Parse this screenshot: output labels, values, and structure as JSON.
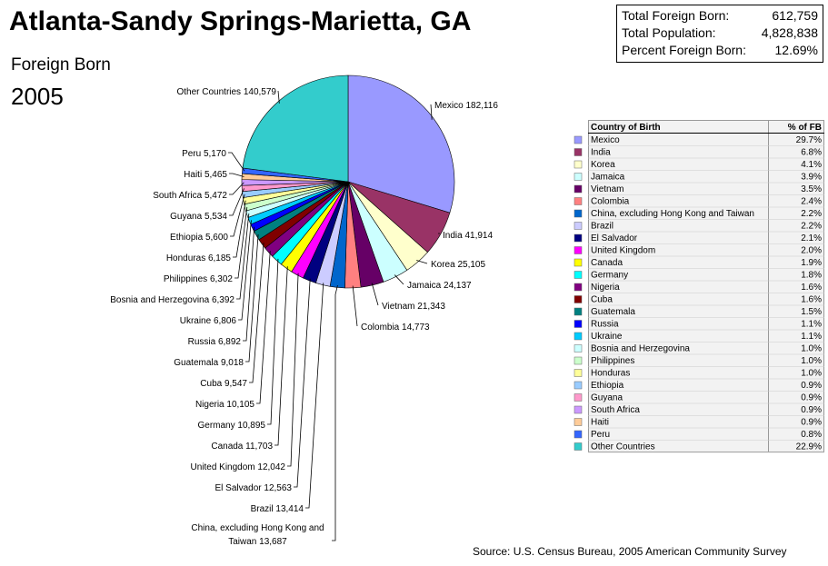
{
  "chart_data": {
    "type": "pie",
    "title": "Atlanta-Sandy Springs-Marietta, GA",
    "subtitle": "Foreign Born",
    "year": "2005",
    "categories": [
      "Mexico",
      "India",
      "Korea",
      "Jamaica",
      "Vietnam",
      "Colombia",
      "China, excluding Hong Kong and Taiwan",
      "Brazil",
      "El Salvador",
      "United Kingdom",
      "Canada",
      "Germany",
      "Nigeria",
      "Cuba",
      "Guatemala",
      "Russia",
      "Ukraine",
      "Bosnia and Herzegovina",
      "Philippines",
      "Honduras",
      "Ethiopia",
      "Guyana",
      "South Africa",
      "Haiti",
      "Peru",
      "Other Countries"
    ],
    "values": [
      182116,
      41914,
      25105,
      24137,
      21343,
      14773,
      13687,
      13414,
      12563,
      12042,
      11703,
      10895,
      10105,
      9547,
      9018,
      6892,
      6806,
      6392,
      6302,
      6185,
      5600,
      5534,
      5472,
      5465,
      5170,
      140579
    ],
    "value_labels": [
      "182,116",
      "41,914",
      "25,105",
      "24,137",
      "21,343",
      "14,773",
      "13,687",
      "13,414",
      "12,563",
      "12,042",
      "11,703",
      "10,895",
      "10,105",
      "9,547",
      "9,018",
      "6,892",
      "6,806",
      "6,392",
      "6,302",
      "6,185",
      "5,600",
      "5,534",
      "5,472",
      "5,465",
      "5,170",
      "140,579"
    ],
    "colors": [
      "#9999ff",
      "#993366",
      "#ffffcc",
      "#ccffff",
      "#660066",
      "#ff8080",
      "#0066cc",
      "#ccccff",
      "#000080",
      "#ff00ff",
      "#ffff00",
      "#00ffff",
      "#800080",
      "#800000",
      "#008080",
      "#0000ff",
      "#00ccff",
      "#ccffff",
      "#ccffcc",
      "#ffff99",
      "#99ccff",
      "#ff99cc",
      "#cc99ff",
      "#ffcc99",
      "#3366ff",
      "#33cccc"
    ],
    "summary": [
      {
        "label": "Total Foreign Born:",
        "value": "612,759"
      },
      {
        "label": "Total Population:",
        "value": "4,828,838"
      },
      {
        "label": "Percent Foreign Born:",
        "value": "12.69%"
      }
    ],
    "table": {
      "headers": [
        "Country of Birth",
        "% of FB"
      ],
      "percents": [
        "29.7%",
        "6.8%",
        "4.1%",
        "3.9%",
        "3.5%",
        "2.4%",
        "2.2%",
        "2.2%",
        "2.1%",
        "2.0%",
        "1.9%",
        "1.8%",
        "1.6%",
        "1.6%",
        "1.5%",
        "1.1%",
        "1.1%",
        "1.0%",
        "1.0%",
        "1.0%",
        "0.9%",
        "0.9%",
        "0.9%",
        "0.9%",
        "0.8%",
        "22.9%"
      ]
    },
    "source": "Source: U.S. Census Bureau, 2005 American Community Survey"
  }
}
